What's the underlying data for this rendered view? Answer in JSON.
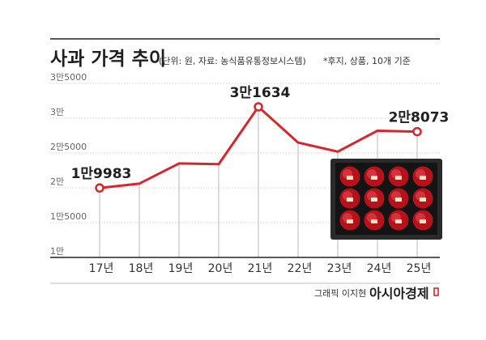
{
  "chart_data": {
    "type": "line",
    "title": "사과 가격 추이",
    "subtitle": "(단위: 원, 자료: 농식품유통정보시스템)",
    "note": "*후지, 상품, 10개 기준",
    "categories": [
      "17년",
      "18년",
      "19년",
      "20년",
      "21년",
      "22년",
      "23년",
      "24년",
      "25년"
    ],
    "series": [
      {
        "values": [
          19983,
          20600,
          23500,
          23400,
          31634,
          26500,
          25200,
          28200,
          28073
        ]
      }
    ],
    "y_ticks": [
      {
        "value": 10000,
        "label": "1만"
      },
      {
        "value": 15000,
        "label": "1만5000"
      },
      {
        "value": 20000,
        "label": "2만"
      },
      {
        "value": 25000,
        "label": "2만5000"
      },
      {
        "value": 30000,
        "label": "3만"
      },
      {
        "value": 35000,
        "label": "3만5000"
      }
    ],
    "ylim": [
      10000,
      35000
    ],
    "data_labels": [
      {
        "index": 0,
        "text": "1만9983"
      },
      {
        "index": 4,
        "text": "3만1634"
      },
      {
        "index": 8,
        "text": "2만8073"
      }
    ],
    "grid": true,
    "line_color": "#d7262c"
  },
  "credit": {
    "author": "그래픽 이지현",
    "brand": "아시아경제"
  },
  "image_icon": "apple-gift-box-image"
}
